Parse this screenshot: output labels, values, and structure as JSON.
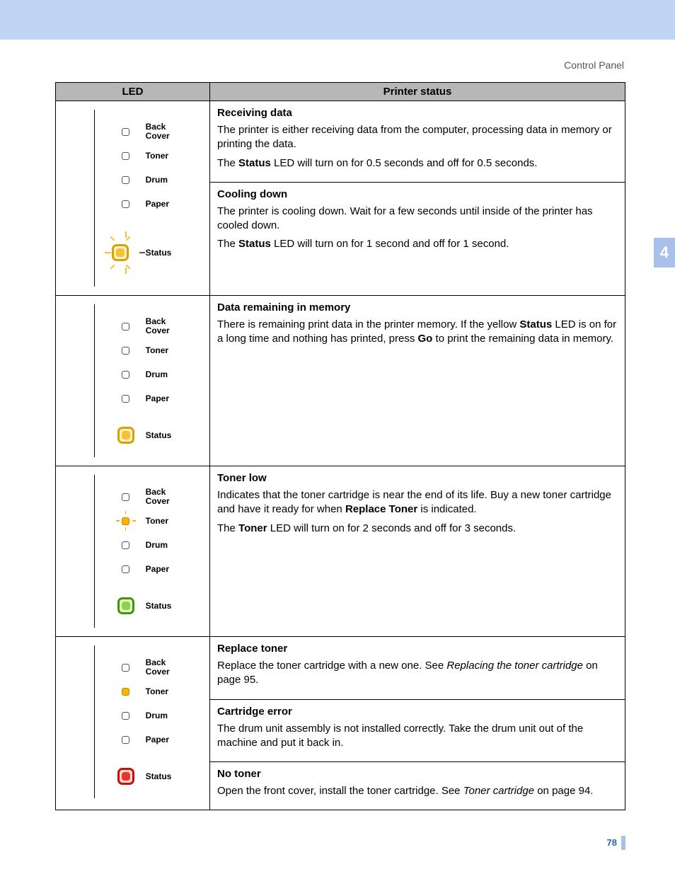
{
  "breadcrumb": "Control Panel",
  "chapter_tab": "4",
  "page_number": "78",
  "headers": {
    "led": "LED",
    "status": "Printer status"
  },
  "led_labels": {
    "back_cover_l1": "Back",
    "back_cover_l2": "Cover",
    "toner": "Toner",
    "drum": "Drum",
    "paper": "Paper",
    "status": "Status"
  },
  "led_states": {
    "off": "off",
    "on_small_orange": "on-small-orange",
    "blink_small_orange": "blink-small-orange",
    "big_yellow": "big-yellow",
    "big_yellow_blink": "big-yellow-blink",
    "big_green": "big-green",
    "big_red": "big-red"
  },
  "rows": [
    {
      "diagram": {
        "back_cover": "off",
        "toner": "off",
        "drum": "off",
        "paper": "off",
        "status": "big_yellow_blink"
      },
      "sections": [
        {
          "title": "Receiving data",
          "html": "The printer is either receiving data from the computer, processing data in memory or printing the data.<br>The <b>Status</b> LED will turn on for 0.5 seconds and off for 0.5 seconds."
        },
        {
          "title": "Cooling down",
          "html": "The printer is cooling down. Wait for a few seconds until inside of the printer has cooled down.<br>The <b>Status</b> LED will turn on for 1 second and off for 1 second."
        }
      ]
    },
    {
      "diagram": {
        "back_cover": "off",
        "toner": "off",
        "drum": "off",
        "paper": "off",
        "status": "big_yellow"
      },
      "sections": [
        {
          "title": "Data remaining in memory",
          "html": "There is remaining print data in the printer memory. If the yellow <b>Status</b> LED is on for a long time and nothing has printed, press <b>Go</b> to print the remaining data in memory."
        }
      ]
    },
    {
      "diagram": {
        "back_cover": "off",
        "toner": "blink_small_orange",
        "drum": "off",
        "paper": "off",
        "status": "big_green"
      },
      "sections": [
        {
          "title": "Toner low",
          "html": "Indicates that the toner cartridge is near the end of its life. Buy a new toner cartridge and have it ready for when <b>Replace Toner</b> is indicated.<br>The <b>Toner</b> LED will turn on for 2 seconds and off for 3 seconds."
        }
      ]
    },
    {
      "diagram": {
        "back_cover": "off",
        "toner": "on_small_orange",
        "drum": "off",
        "paper": "off",
        "status": "big_red"
      },
      "sections": [
        {
          "title": "Replace toner",
          "html": "Replace the toner cartridge with a new one. See <i>Replacing the toner cartridge</i> on page 95."
        },
        {
          "title": "Cartridge error",
          "html": "The drum unit assembly is not installed correctly. Take the drum unit out of the machine and put it back in."
        },
        {
          "title": "No toner",
          "html": "Open the front cover, install the toner cartridge. See <i>Toner cartridge</i> on page 94."
        }
      ]
    }
  ]
}
